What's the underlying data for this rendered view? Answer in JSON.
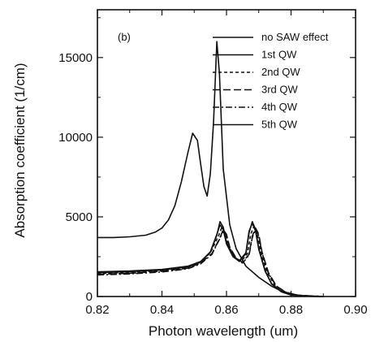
{
  "chart_data": {
    "type": "line",
    "panel_label": "(b)",
    "xlabel": "Photon wavelength (um)",
    "ylabel": "Absorption coefficient (1/cm)",
    "xlim": [
      0.82,
      0.9
    ],
    "ylim": [
      0,
      18000
    ],
    "x_ticks": [
      0.82,
      0.84,
      0.86,
      0.88,
      0.9
    ],
    "x_tick_labels": [
      "0.82",
      "0.84",
      "0.86",
      "0.88",
      "0.90"
    ],
    "y_ticks": [
      0,
      5000,
      10000,
      15000
    ],
    "y_tick_labels": [
      "0",
      "5000",
      "10000",
      "15000"
    ],
    "grid": false,
    "legend_position": "top-right",
    "series": [
      {
        "name": "no SAW effect",
        "dash": "solid",
        "points": [
          [
            0.82,
            3700
          ],
          [
            0.825,
            3700
          ],
          [
            0.83,
            3750
          ],
          [
            0.835,
            3850
          ],
          [
            0.838,
            4050
          ],
          [
            0.84,
            4300
          ],
          [
            0.842,
            4800
          ],
          [
            0.844,
            5700
          ],
          [
            0.846,
            7200
          ],
          [
            0.848,
            9000
          ],
          [
            0.8495,
            10250
          ],
          [
            0.851,
            9800
          ],
          [
            0.852,
            8300
          ],
          [
            0.853,
            6900
          ],
          [
            0.854,
            6300
          ],
          [
            0.855,
            7700
          ],
          [
            0.856,
            11000
          ],
          [
            0.857,
            16000
          ],
          [
            0.8578,
            14000
          ],
          [
            0.859,
            8000
          ],
          [
            0.861,
            4500
          ],
          [
            0.863,
            3000
          ],
          [
            0.866,
            1900
          ],
          [
            0.87,
            1200
          ],
          [
            0.874,
            650
          ],
          [
            0.878,
            250
          ],
          [
            0.882,
            80
          ],
          [
            0.886,
            20
          ],
          [
            0.89,
            0
          ]
        ]
      },
      {
        "name": "1st QW",
        "dash": "solid",
        "points": [
          [
            0.82,
            1550
          ],
          [
            0.83,
            1600
          ],
          [
            0.84,
            1700
          ],
          [
            0.848,
            1900
          ],
          [
            0.852,
            2200
          ],
          [
            0.855,
            2800
          ],
          [
            0.857,
            3900
          ],
          [
            0.858,
            4500
          ],
          [
            0.859,
            4200
          ],
          [
            0.86,
            3300
          ],
          [
            0.862,
            2500
          ],
          [
            0.864,
            2200
          ],
          [
            0.866,
            2700
          ],
          [
            0.867,
            4000
          ],
          [
            0.868,
            4700
          ],
          [
            0.869,
            4200
          ],
          [
            0.87,
            3000
          ],
          [
            0.872,
            1600
          ],
          [
            0.874,
            800
          ],
          [
            0.877,
            300
          ],
          [
            0.88,
            100
          ],
          [
            0.885,
            20
          ],
          [
            0.89,
            0
          ]
        ]
      },
      {
        "name": "2nd QW",
        "dash": "4,3",
        "points": [
          [
            0.82,
            1450
          ],
          [
            0.83,
            1500
          ],
          [
            0.84,
            1620
          ],
          [
            0.848,
            1820
          ],
          [
            0.852,
            2150
          ],
          [
            0.855,
            2750
          ],
          [
            0.8575,
            3800
          ],
          [
            0.8585,
            4300
          ],
          [
            0.8595,
            4000
          ],
          [
            0.8605,
            3200
          ],
          [
            0.8625,
            2450
          ],
          [
            0.8645,
            2200
          ],
          [
            0.8665,
            2700
          ],
          [
            0.8675,
            3900
          ],
          [
            0.8685,
            4400
          ],
          [
            0.8695,
            4000
          ],
          [
            0.8705,
            2900
          ],
          [
            0.8725,
            1550
          ],
          [
            0.875,
            700
          ],
          [
            0.878,
            280
          ],
          [
            0.882,
            80
          ],
          [
            0.89,
            0
          ]
        ]
      },
      {
        "name": "3rd QW",
        "dash": "9,4",
        "points": [
          [
            0.82,
            1400
          ],
          [
            0.83,
            1460
          ],
          [
            0.84,
            1580
          ],
          [
            0.848,
            1780
          ],
          [
            0.852,
            2100
          ],
          [
            0.8555,
            2700
          ],
          [
            0.858,
            3700
          ],
          [
            0.859,
            4200
          ],
          [
            0.86,
            3900
          ],
          [
            0.861,
            3100
          ],
          [
            0.863,
            2400
          ],
          [
            0.865,
            2150
          ],
          [
            0.867,
            2650
          ],
          [
            0.868,
            3800
          ],
          [
            0.869,
            4300
          ],
          [
            0.87,
            3900
          ],
          [
            0.871,
            2800
          ],
          [
            0.873,
            1500
          ],
          [
            0.8755,
            650
          ],
          [
            0.8785,
            260
          ],
          [
            0.8825,
            70
          ],
          [
            0.89,
            0
          ]
        ]
      },
      {
        "name": "4th QW",
        "dash": "8,3,2,3",
        "points": [
          [
            0.82,
            1350
          ],
          [
            0.83,
            1420
          ],
          [
            0.84,
            1540
          ],
          [
            0.848,
            1740
          ],
          [
            0.852,
            2050
          ],
          [
            0.8555,
            2650
          ],
          [
            0.858,
            3650
          ],
          [
            0.859,
            4100
          ],
          [
            0.86,
            3850
          ],
          [
            0.861,
            3050
          ],
          [
            0.863,
            2350
          ],
          [
            0.865,
            2100
          ],
          [
            0.867,
            2600
          ],
          [
            0.868,
            3700
          ],
          [
            0.869,
            4200
          ],
          [
            0.87,
            3800
          ],
          [
            0.871,
            2750
          ],
          [
            0.873,
            1450
          ],
          [
            0.8755,
            630
          ],
          [
            0.8785,
            250
          ],
          [
            0.8825,
            60
          ],
          [
            0.89,
            0
          ]
        ]
      },
      {
        "name": "5th QW",
        "dash": "solid",
        "points": [
          [
            0.82,
            1500
          ],
          [
            0.83,
            1560
          ],
          [
            0.84,
            1660
          ],
          [
            0.848,
            1860
          ],
          [
            0.852,
            2180
          ],
          [
            0.855,
            2780
          ],
          [
            0.857,
            3850
          ],
          [
            0.858,
            4700
          ],
          [
            0.859,
            4350
          ],
          [
            0.86,
            3400
          ],
          [
            0.862,
            2550
          ],
          [
            0.864,
            2250
          ],
          [
            0.866,
            2750
          ],
          [
            0.867,
            4100
          ],
          [
            0.868,
            4600
          ],
          [
            0.869,
            4100
          ],
          [
            0.87,
            2950
          ],
          [
            0.872,
            1580
          ],
          [
            0.874,
            780
          ],
          [
            0.877,
            290
          ],
          [
            0.88,
            90
          ],
          [
            0.885,
            15
          ],
          [
            0.89,
            0
          ]
        ]
      }
    ]
  }
}
